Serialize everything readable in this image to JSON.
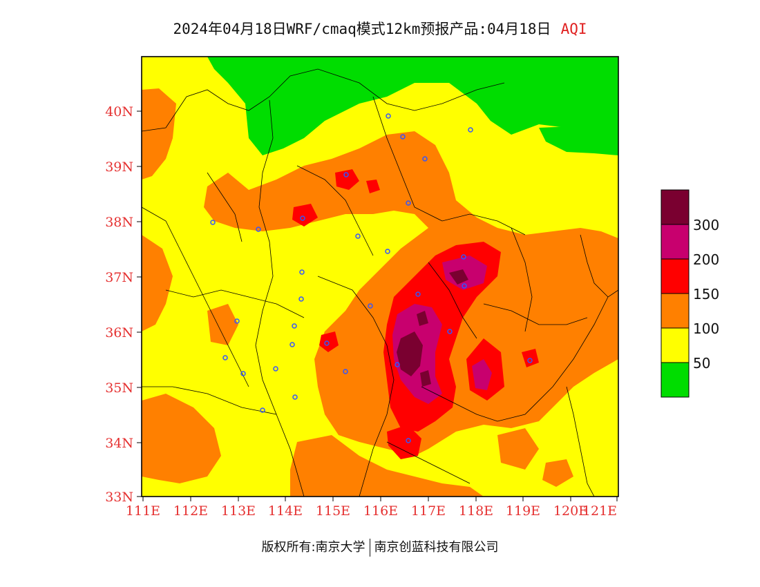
{
  "title": {
    "main": "2024年04月18日WRF/cmaq模式12km预报产品:04月18日",
    "variable": "AQI"
  },
  "axes": {
    "lat_labels": [
      "40N",
      "39N",
      "38N",
      "37N",
      "36N",
      "35N",
      "34N",
      "33N"
    ],
    "lon_labels": [
      "111E",
      "112E",
      "113E",
      "114E",
      "115E",
      "116E",
      "117E",
      "118E",
      "119E",
      "120E",
      "121E"
    ]
  },
  "legend": {
    "levels": [
      {
        "label": "",
        "color": "#7a0030"
      },
      {
        "label": "300",
        "color": "#c8006e"
      },
      {
        "label": "200",
        "color": "#ff0000"
      },
      {
        "label": "150",
        "color": "#ff8000"
      },
      {
        "label": "100",
        "color": "#ffff00"
      },
      {
        "label": "50",
        "color": "#00dd00"
      }
    ]
  },
  "footer": {
    "left": "版权所有:南京大学",
    "right": "南京创蓝科技有限公司"
  },
  "colors": {
    "good": "#00dd00",
    "moderate": "#ffff00",
    "unhealthy_sensitive": "#ff8000",
    "unhealthy": "#ff0000",
    "very_unhealthy": "#c8006e",
    "hazardous": "#7a0030",
    "axis_label": "#e53030",
    "station_marker": "#3355ff"
  }
}
